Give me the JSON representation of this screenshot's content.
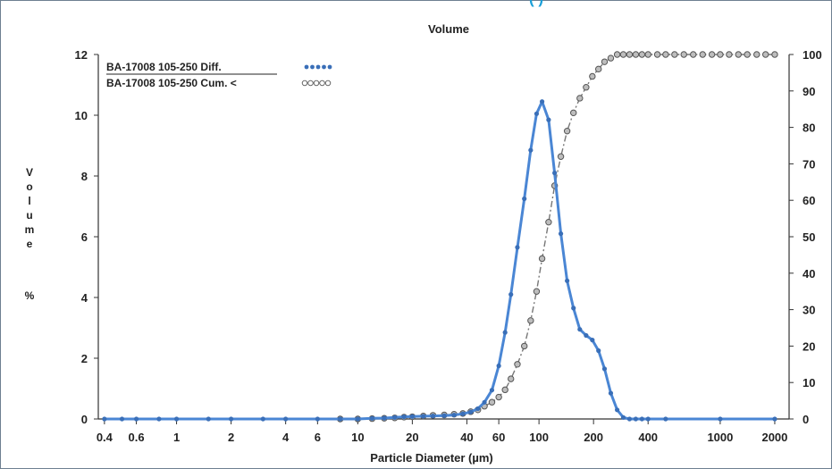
{
  "header_fragment": "(                                    )",
  "chart_data": {
    "type": "line",
    "title": "Volume",
    "xlabel": "Particle Diameter (µm)",
    "ylabel": "Volume %",
    "x_scale": "log",
    "xlim": [
      0.37,
      2400
    ],
    "ylim": [
      0,
      12
    ],
    "y2lim": [
      0,
      100
    ],
    "x_ticks": [
      0.4,
      0.6,
      1,
      2,
      4,
      6,
      10,
      20,
      40,
      60,
      100,
      200,
      400,
      1000,
      2000
    ],
    "x_tick_labels": [
      "0.4",
      "0.6",
      "1",
      "2",
      "4",
      "6",
      "10",
      "20",
      "40",
      "60",
      "100",
      "200",
      "400",
      "1000",
      "2000"
    ],
    "y_ticks": [
      0,
      2,
      4,
      6,
      8,
      10,
      12
    ],
    "y_tick_labels": [
      "0",
      "2",
      "4",
      "6",
      "8",
      "10",
      "12"
    ],
    "y2_ticks": [
      0,
      10,
      20,
      30,
      40,
      50,
      60,
      70,
      80,
      90,
      100
    ],
    "y2_tick_labels": [
      "0",
      "10",
      "20",
      "30",
      "40",
      "50",
      "60",
      "70",
      "80",
      "90",
      "100"
    ],
    "grid": false,
    "legend_position": "top-left",
    "colors": {
      "diff": "#4a86d4",
      "cum": "#777777",
      "header": "#1a9fd8"
    },
    "series": [
      {
        "name": "BA-17008 105-250 Diff.",
        "axis": "left",
        "style": "line-with-filled-markers",
        "x": [
          0.4,
          0.5,
          0.6,
          0.8,
          1,
          1.5,
          2,
          3,
          4,
          6,
          8,
          10,
          12,
          14,
          16,
          18,
          20,
          23,
          26,
          30,
          34,
          38,
          42,
          46,
          50,
          55,
          60,
          65,
          70,
          76,
          83,
          90,
          97,
          104,
          113,
          122,
          132,
          143,
          155,
          168,
          182,
          197,
          213,
          230,
          249,
          270,
          292,
          316,
          342,
          370,
          400,
          500,
          1000,
          2000
        ],
        "y": [
          0,
          0,
          0,
          0,
          0,
          0,
          0,
          0,
          0,
          0,
          0,
          0,
          0.02,
          0.03,
          0.05,
          0.07,
          0.08,
          0.09,
          0.1,
          0.11,
          0.13,
          0.17,
          0.23,
          0.34,
          0.55,
          0.95,
          1.75,
          2.85,
          4.1,
          5.65,
          7.25,
          8.85,
          10.05,
          10.45,
          9.85,
          8.1,
          6.1,
          4.55,
          3.65,
          2.95,
          2.75,
          2.6,
          2.25,
          1.65,
          0.85,
          0.3,
          0.05,
          0,
          0,
          0,
          0,
          0,
          0,
          0
        ]
      },
      {
        "name": "BA-17008 105-250 Cum. <",
        "axis": "right",
        "style": "dashed-with-open-markers",
        "x": [
          8,
          10,
          12,
          14,
          16,
          18,
          20,
          23,
          26,
          30,
          34,
          38,
          42,
          46,
          50,
          55,
          60,
          65,
          70,
          76,
          83,
          90,
          97,
          104,
          113,
          122,
          132,
          143,
          155,
          168,
          182,
          197,
          213,
          230,
          249,
          270,
          292,
          316,
          342,
          370,
          400,
          450,
          500,
          560,
          630,
          710,
          800,
          900,
          1000,
          1120,
          1260,
          1410,
          1590,
          1780,
          2000
        ],
        "y": [
          0,
          0,
          0.1,
          0.2,
          0.3,
          0.5,
          0.6,
          0.8,
          1,
          1.1,
          1.3,
          1.5,
          2,
          2.5,
          3.5,
          4.6,
          6,
          8,
          11,
          15,
          20,
          27,
          35,
          44,
          54,
          64,
          72,
          79,
          84,
          88,
          91,
          94,
          96,
          98,
          99,
          100,
          100,
          100,
          100,
          100,
          100,
          100,
          100,
          100,
          100,
          100,
          100,
          100,
          100,
          100,
          100,
          100,
          100,
          100,
          100
        ]
      }
    ]
  }
}
